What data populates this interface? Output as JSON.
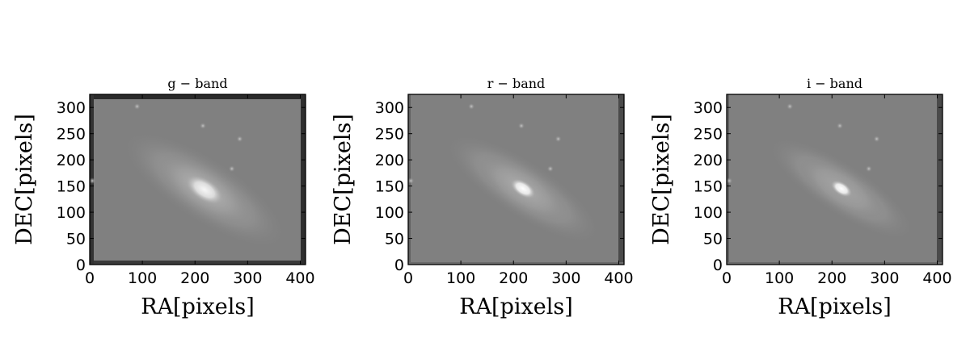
{
  "chart_data": [
    {
      "type": "heatmap",
      "title": "g − band",
      "xlabel": "RA[pixels]",
      "ylabel": "DEC[pixels]",
      "xlim": [
        0,
        410
      ],
      "ylim": [
        0,
        325
      ],
      "xticks": [
        "0",
        "100",
        "200",
        "300",
        "400"
      ],
      "yticks": [
        "0",
        "50",
        "100",
        "150",
        "200",
        "250",
        "300"
      ],
      "colormap": "gray",
      "source": {
        "galaxy_center": [
          218,
          143
        ],
        "core_semi_axes": [
          38,
          20
        ],
        "halo_semi_axes": [
          185,
          62
        ],
        "position_angle_deg": -33,
        "core_brightness": 0.92,
        "halo_brightness": 0.38,
        "background_level": 0.5,
        "stars": [
          [
            285,
            240
          ],
          [
            270,
            183
          ],
          [
            215,
            265
          ],
          [
            90,
            302
          ],
          [
            5,
            160
          ]
        ]
      },
      "edge_artifacts": true
    },
    {
      "type": "heatmap",
      "title": "r − band",
      "xlabel": "RA[pixels]",
      "ylabel": "DEC[pixels]",
      "xlim": [
        0,
        410
      ],
      "ylim": [
        0,
        325
      ],
      "xticks": [
        "0",
        "100",
        "200",
        "300",
        "400"
      ],
      "yticks": [
        "0",
        "50",
        "100",
        "150",
        "200",
        "250",
        "300"
      ],
      "colormap": "gray",
      "source": {
        "galaxy_center": [
          218,
          145
        ],
        "core_semi_axes": [
          26,
          14
        ],
        "halo_semi_axes": [
          175,
          55
        ],
        "position_angle_deg": -33,
        "core_brightness": 0.97,
        "halo_brightness": 0.3,
        "background_level": 0.5,
        "stars": [
          [
            285,
            240
          ],
          [
            270,
            183
          ],
          [
            215,
            265
          ],
          [
            120,
            302
          ],
          [
            5,
            160
          ]
        ]
      },
      "edge_artifacts": false
    },
    {
      "type": "heatmap",
      "title": "i − band",
      "xlabel": "RA[pixels]",
      "ylabel": "DEC[pixels]",
      "xlim": [
        0,
        410
      ],
      "ylim": [
        0,
        325
      ],
      "xticks": [
        "0",
        "100",
        "200",
        "300",
        "400"
      ],
      "yticks": [
        "0",
        "50",
        "100",
        "150",
        "200",
        "250",
        "300"
      ],
      "colormap": "gray",
      "source": {
        "galaxy_center": [
          218,
          145
        ],
        "core_semi_axes": [
          22,
          12
        ],
        "halo_semi_axes": [
          165,
          50
        ],
        "position_angle_deg": -33,
        "core_brightness": 0.98,
        "halo_brightness": 0.24,
        "background_level": 0.5,
        "stars": [
          [
            285,
            240
          ],
          [
            270,
            183
          ],
          [
            215,
            265
          ],
          [
            120,
            302
          ],
          [
            5,
            160
          ]
        ]
      },
      "edge_artifacts": false
    }
  ]
}
